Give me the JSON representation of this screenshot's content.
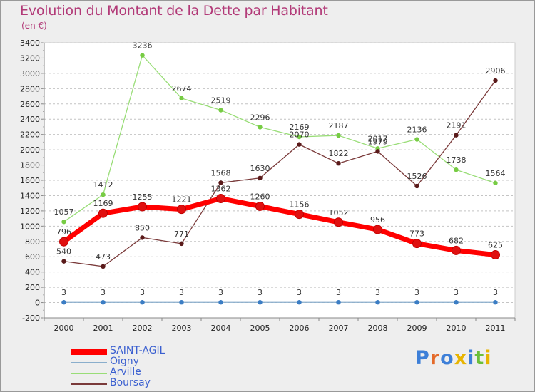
{
  "header": {
    "title": "Evolution du Montant de la Dette par Habitant",
    "subtitle": "(en €)"
  },
  "logo": {
    "text": "Proxiti",
    "letter_colors": [
      "#3d7fd8",
      "#e46a2a",
      "#3d7fd8",
      "#e8b400",
      "#3d7fd8",
      "#6bbf3a",
      "#e8b400"
    ]
  },
  "chart_data": {
    "type": "line",
    "title": "Evolution du Montant de la Dette par Habitant",
    "subtitle": "(en €)",
    "xlabel": "",
    "ylabel": "",
    "x": [
      "2000",
      "2001",
      "2002",
      "2003",
      "2004",
      "2005",
      "2006",
      "2007",
      "2008",
      "2009",
      "2010",
      "2011"
    ],
    "ylim": [
      -200,
      3400
    ],
    "yticks": [
      -200,
      0,
      200,
      400,
      600,
      800,
      1000,
      1200,
      1400,
      1600,
      1800,
      2000,
      2200,
      2400,
      2600,
      2800,
      3000,
      3200,
      3400
    ],
    "grid": "horizontal-dashed",
    "legend_position": "bottom-left",
    "series": [
      {
        "name": "SAINT-AGIL",
        "color": "#ff0000",
        "point_color": "#e01010",
        "values": [
          796,
          1169,
          1255,
          1221,
          1362,
          1260,
          1156,
          1052,
          956,
          773,
          682,
          625
        ]
      },
      {
        "name": "Oigny",
        "color": "#8aaecc",
        "point_color": "#3b7dc4",
        "values": [
          3,
          3,
          3,
          3,
          3,
          3,
          3,
          3,
          3,
          3,
          3,
          3
        ]
      },
      {
        "name": "Arville",
        "color": "#99dd77",
        "point_color": "#77cc44",
        "values": [
          1057,
          1412,
          3236,
          2674,
          2519,
          2296,
          2169,
          2187,
          2017,
          2136,
          1738,
          1564
        ]
      },
      {
        "name": "Boursay",
        "color": "#7a3a3a",
        "point_color": "#5a1a1a",
        "values": [
          540,
          473,
          850,
          771,
          1568,
          1630,
          2070,
          1822,
          1979,
          1526,
          2191,
          2906
        ]
      }
    ]
  }
}
